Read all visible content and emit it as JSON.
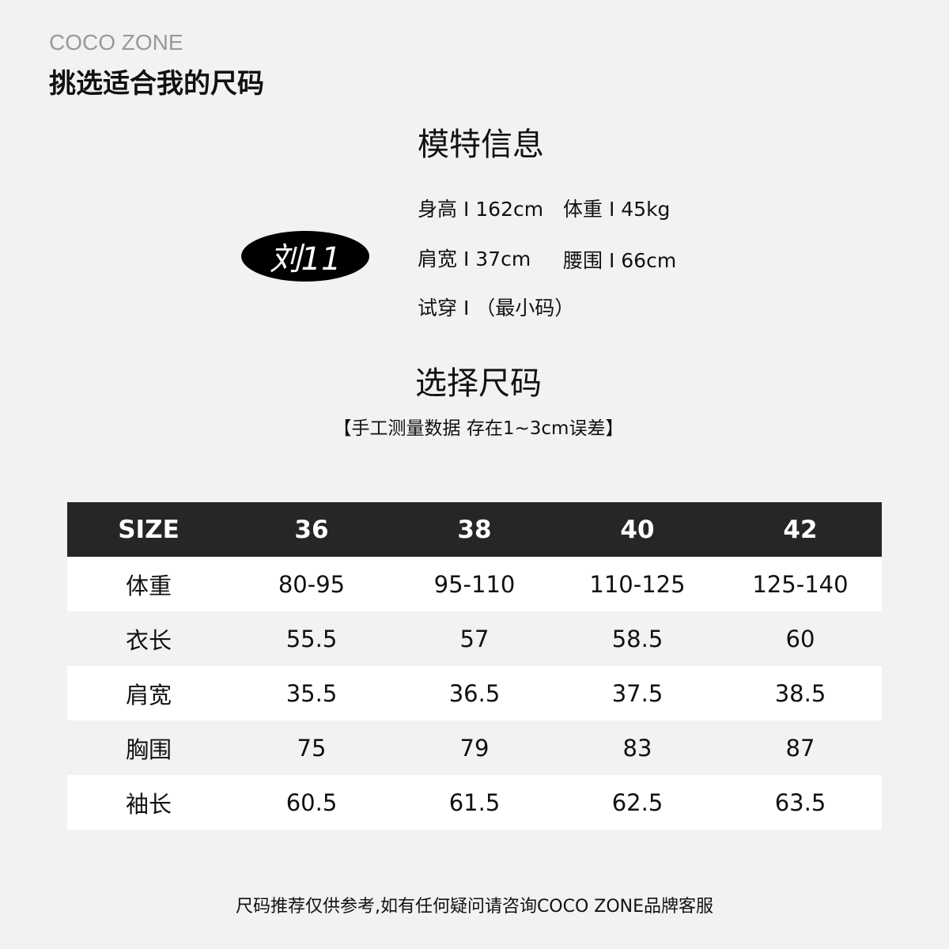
{
  "brand": "COCO ZONE",
  "title": "挑选适合我的尺码",
  "model": {
    "heading": "模特信息",
    "name": "刘11",
    "height": "身高 I 162cm",
    "weight": "体重 I 45kg",
    "shoulder": "肩宽 I 37cm",
    "waist": "腰围 I 66cm",
    "tryon": "试穿 I （最小码）"
  },
  "size_section": {
    "heading": "选择尺码",
    "note": "【手工测量数据 存在1~3cm误差】"
  },
  "table": {
    "headers": [
      "SIZE",
      "36",
      "38",
      "40",
      "42"
    ],
    "rows": [
      [
        "体重",
        "80-95",
        "95-110",
        "110-125",
        "125-140"
      ],
      [
        "衣长",
        "55.5",
        "57",
        "58.5",
        "60"
      ],
      [
        "肩宽",
        "35.5",
        "36.5",
        "37.5",
        "38.5"
      ],
      [
        "胸围",
        "75",
        "79",
        "83",
        "87"
      ],
      [
        "袖长",
        "60.5",
        "61.5",
        "62.5",
        "63.5"
      ]
    ]
  },
  "footer": "尺码推荐仅供参考,如有任何疑问请咨询COCO ZONE品牌客服"
}
